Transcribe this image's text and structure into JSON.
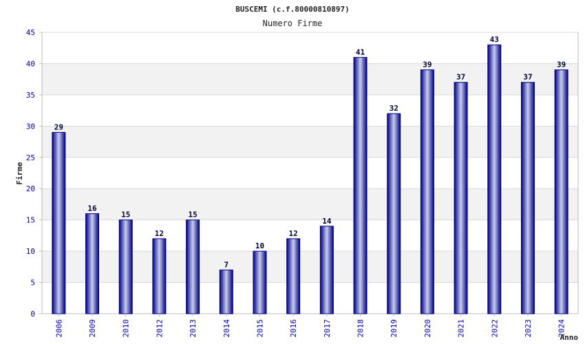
{
  "colors": {
    "bar_edge": "#000080",
    "bar_center": "#c8cdf0",
    "tick_text": "#0000aa",
    "band": "#f2f2f2",
    "grid": "#d9d9d9",
    "axis": "#bbbbbb"
  },
  "chart_data": {
    "type": "bar",
    "title": "BUSCEMI (c.f.80000810897)",
    "subtitle": "Numero Firme",
    "xlabel": "Anno",
    "ylabel": "Firme",
    "categories": [
      "2006",
      "2009",
      "2010",
      "2012",
      "2013",
      "2014",
      "2015",
      "2016",
      "2017",
      "2018",
      "2019",
      "2020",
      "2021",
      "2022",
      "2023",
      "2024"
    ],
    "values": [
      29,
      16,
      15,
      12,
      15,
      7,
      10,
      12,
      14,
      41,
      32,
      39,
      37,
      43,
      37,
      39
    ],
    "ylim": [
      0,
      45
    ],
    "yticks": [
      "0",
      "5",
      "10",
      "15",
      "20",
      "25",
      "30",
      "35",
      "40",
      "45"
    ],
    "grid": true,
    "alternating_bands": true,
    "data_labels": true
  }
}
